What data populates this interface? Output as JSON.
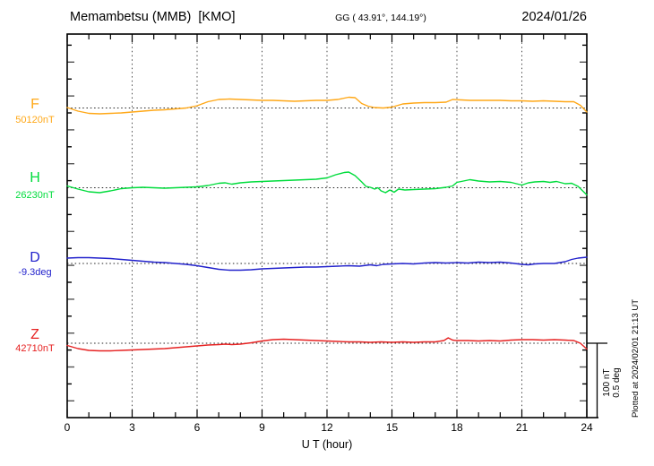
{
  "header": {
    "station": "Memambetsu (MMB)  [KMO]",
    "coords": "GG ( 43.91°, 144.19°)",
    "date": "2024/01/26"
  },
  "footer_note": "Plotted at 2024/02/01 21:13 UT",
  "x_axis": {
    "label": "U T (hour)",
    "ticks": [
      "0",
      "3",
      "6",
      "9",
      "12",
      "15",
      "18",
      "21",
      "24"
    ],
    "min": 0,
    "max": 24
  },
  "scale_bar": {
    "line1": "100 nT",
    "line2": "0.5 deg"
  },
  "channels": [
    {
      "label": "F",
      "value_label": "50120nT",
      "color": "#FFA818"
    },
    {
      "label": "H",
      "value_label": "26230nT",
      "color": "#00DC3C"
    },
    {
      "label": "D",
      "value_label": "-9.3deg",
      "color": "#2222CC"
    },
    {
      "label": "Z",
      "value_label": "42710nT",
      "color": "#E62222"
    }
  ],
  "chart_data": {
    "type": "line",
    "title": "Memambetsu (MMB) [KMO] magnetogram, 2024/01/26",
    "xlabel": "U T (hour)",
    "x_range": [
      0,
      24
    ],
    "x_ticks": [
      0,
      3,
      6,
      9,
      12,
      15,
      18,
      21,
      24
    ],
    "grid": "dotted vertical gridlines every 3 hours; dotted horizontal baseline per channel",
    "legend_position": "left",
    "scale": {
      "nT_per_division": 100,
      "deg_per_division": 0.5
    },
    "note": "points are [UT hour, deviation from base_value in unit]",
    "series": [
      {
        "name": "F",
        "unit": "nT",
        "base_value": 50120,
        "color": "#FFA818",
        "points": [
          [
            0,
            0.6
          ],
          [
            0.5,
            -4.2
          ],
          [
            1,
            -7.2
          ],
          [
            1.5,
            -7.8
          ],
          [
            2,
            -7.2
          ],
          [
            2.5,
            -6.6
          ],
          [
            3,
            -5.4
          ],
          [
            3.5,
            -4.2
          ],
          [
            4,
            -3.0
          ],
          [
            4.5,
            -2.4
          ],
          [
            5,
            -1.2
          ],
          [
            5.5,
            0
          ],
          [
            6,
            3.0
          ],
          [
            6.5,
            8.4
          ],
          [
            7,
            11.4
          ],
          [
            7.5,
            12.0
          ],
          [
            8,
            11.4
          ],
          [
            8.5,
            10.8
          ],
          [
            9,
            10.2
          ],
          [
            9.5,
            10.2
          ],
          [
            10,
            9.6
          ],
          [
            10.5,
            9.0
          ],
          [
            11,
            9.6
          ],
          [
            11.5,
            10.2
          ],
          [
            12,
            10.2
          ],
          [
            12.5,
            11.4
          ],
          [
            13,
            14.5
          ],
          [
            13.3,
            13.9
          ],
          [
            13.6,
            6.0
          ],
          [
            13.9,
            2.4
          ],
          [
            14.2,
            0.6
          ],
          [
            14.6,
            0
          ],
          [
            15,
            1.2
          ],
          [
            15.5,
            5.4
          ],
          [
            16,
            6.6
          ],
          [
            16.5,
            7.2
          ],
          [
            17,
            7.2
          ],
          [
            17.5,
            7.8
          ],
          [
            17.8,
            11.4
          ],
          [
            18.2,
            10.8
          ],
          [
            18.6,
            10.2
          ],
          [
            19,
            10.2
          ],
          [
            19.5,
            10.2
          ],
          [
            20,
            10.2
          ],
          [
            20.5,
            9.6
          ],
          [
            21,
            9.6
          ],
          [
            21.5,
            9.0
          ],
          [
            22,
            9.6
          ],
          [
            22.5,
            9.0
          ],
          [
            23,
            8.4
          ],
          [
            23.4,
            8.4
          ],
          [
            23.7,
            3.6
          ],
          [
            24,
            -5.4
          ]
        ]
      },
      {
        "name": "H",
        "unit": "nT",
        "base_value": 26230,
        "color": "#00DC3C",
        "points": [
          [
            0,
            2.4
          ],
          [
            0.5,
            -1.8
          ],
          [
            1,
            -5.4
          ],
          [
            1.5,
            -6.6
          ],
          [
            2,
            -4.2
          ],
          [
            2.5,
            -1.2
          ],
          [
            3,
            0
          ],
          [
            3.5,
            0.6
          ],
          [
            4,
            0
          ],
          [
            4.5,
            -0.6
          ],
          [
            5,
            0
          ],
          [
            5.5,
            0.6
          ],
          [
            6,
            1.2
          ],
          [
            6.5,
            3.0
          ],
          [
            7,
            6.0
          ],
          [
            7.3,
            6.6
          ],
          [
            7.6,
            4.8
          ],
          [
            8,
            6.6
          ],
          [
            8.5,
            7.8
          ],
          [
            9,
            8.4
          ],
          [
            9.5,
            9.0
          ],
          [
            10,
            9.6
          ],
          [
            10.5,
            10.2
          ],
          [
            11,
            10.8
          ],
          [
            11.5,
            11.4
          ],
          [
            12,
            13.3
          ],
          [
            12.4,
            17.5
          ],
          [
            12.8,
            20.5
          ],
          [
            13,
            21.1
          ],
          [
            13.3,
            16.3
          ],
          [
            13.6,
            7.8
          ],
          [
            13.8,
            1.8
          ],
          [
            14,
            0.6
          ],
          [
            14.2,
            -1.8
          ],
          [
            14.35,
            0
          ],
          [
            14.5,
            -4.2
          ],
          [
            14.7,
            -6.6
          ],
          [
            14.9,
            -3.0
          ],
          [
            15.1,
            -6.0
          ],
          [
            15.3,
            -1.8
          ],
          [
            15.6,
            -3.0
          ],
          [
            16,
            -2.4
          ],
          [
            16.5,
            -1.8
          ],
          [
            17,
            -1.2
          ],
          [
            17.5,
            0.6
          ],
          [
            17.8,
            2.4
          ],
          [
            18,
            7.2
          ],
          [
            18.3,
            9.0
          ],
          [
            18.6,
            10.8
          ],
          [
            19,
            9.0
          ],
          [
            19.5,
            7.8
          ],
          [
            20,
            8.4
          ],
          [
            20.5,
            7.2
          ],
          [
            21,
            3.6
          ],
          [
            21.3,
            6.6
          ],
          [
            21.6,
            7.8
          ],
          [
            22,
            8.4
          ],
          [
            22.3,
            7.2
          ],
          [
            22.6,
            8.4
          ],
          [
            23,
            5.4
          ],
          [
            23.3,
            6.0
          ],
          [
            23.6,
            1.8
          ],
          [
            24,
            -9.6
          ]
        ]
      },
      {
        "name": "D",
        "unit": "deg",
        "base_value": -9.3,
        "color": "#2222CC",
        "points": [
          [
            0,
            0.036
          ],
          [
            0.5,
            0.039
          ],
          [
            1,
            0.039
          ],
          [
            1.5,
            0.036
          ],
          [
            2,
            0.033
          ],
          [
            2.5,
            0.027
          ],
          [
            3,
            0.021
          ],
          [
            3.5,
            0.015
          ],
          [
            4,
            0.009
          ],
          [
            4.5,
            0.006
          ],
          [
            5,
            0
          ],
          [
            5.5,
            -0.006
          ],
          [
            6,
            -0.015
          ],
          [
            6.5,
            -0.027
          ],
          [
            7,
            -0.039
          ],
          [
            7.5,
            -0.045
          ],
          [
            8,
            -0.045
          ],
          [
            8.5,
            -0.042
          ],
          [
            9,
            -0.036
          ],
          [
            9.5,
            -0.033
          ],
          [
            10,
            -0.03
          ],
          [
            10.5,
            -0.027
          ],
          [
            11,
            -0.024
          ],
          [
            11.5,
            -0.024
          ],
          [
            12,
            -0.021
          ],
          [
            12.5,
            -0.018
          ],
          [
            13,
            -0.015
          ],
          [
            13.5,
            -0.018
          ],
          [
            14,
            -0.009
          ],
          [
            14.3,
            -0.015
          ],
          [
            14.6,
            -0.006
          ],
          [
            15,
            -0.003
          ],
          [
            15.5,
            0
          ],
          [
            16,
            -0.003
          ],
          [
            16.5,
            0.003
          ],
          [
            17,
            0.006
          ],
          [
            17.5,
            0.003
          ],
          [
            18,
            0.006
          ],
          [
            18.5,
            0.003
          ],
          [
            19,
            0.009
          ],
          [
            19.5,
            0.006
          ],
          [
            20,
            0.009
          ],
          [
            20.5,
            0.003
          ],
          [
            21,
            -0.006
          ],
          [
            21.3,
            -0.009
          ],
          [
            21.6,
            -0.003
          ],
          [
            22,
            0
          ],
          [
            22.5,
            0
          ],
          [
            23,
            0.012
          ],
          [
            23.3,
            0.027
          ],
          [
            23.6,
            0.036
          ],
          [
            24,
            0.042
          ]
        ]
      },
      {
        "name": "Z",
        "unit": "nT",
        "base_value": 42710,
        "color": "#E62222",
        "points": [
          [
            0,
            -3.0
          ],
          [
            0.5,
            -7.2
          ],
          [
            1,
            -9.6
          ],
          [
            1.5,
            -10.2
          ],
          [
            2,
            -10.2
          ],
          [
            2.5,
            -9.6
          ],
          [
            3,
            -9.0
          ],
          [
            3.5,
            -8.4
          ],
          [
            4,
            -7.8
          ],
          [
            4.5,
            -7.2
          ],
          [
            5,
            -6.0
          ],
          [
            5.5,
            -4.8
          ],
          [
            6,
            -3.6
          ],
          [
            6.5,
            -2.4
          ],
          [
            7,
            -1.8
          ],
          [
            7.3,
            -1.2
          ],
          [
            7.6,
            -1.8
          ],
          [
            8,
            -1.2
          ],
          [
            8.5,
            0.6
          ],
          [
            9,
            3.0
          ],
          [
            9.5,
            4.8
          ],
          [
            10,
            5.4
          ],
          [
            10.5,
            4.8
          ],
          [
            11,
            4.2
          ],
          [
            11.5,
            3.6
          ],
          [
            12,
            3.0
          ],
          [
            12.5,
            2.4
          ],
          [
            13,
            1.8
          ],
          [
            13.5,
            1.8
          ],
          [
            14,
            1.2
          ],
          [
            14.5,
            1.8
          ],
          [
            15,
            1.2
          ],
          [
            15.5,
            1.8
          ],
          [
            16,
            1.2
          ],
          [
            16.5,
            1.8
          ],
          [
            17,
            1.8
          ],
          [
            17.4,
            3.6
          ],
          [
            17.6,
            7.2
          ],
          [
            17.8,
            4.2
          ],
          [
            18,
            3.6
          ],
          [
            18.5,
            3.6
          ],
          [
            19,
            3.0
          ],
          [
            19.5,
            3.6
          ],
          [
            20,
            3.0
          ],
          [
            20.5,
            4.2
          ],
          [
            21,
            4.8
          ],
          [
            21.5,
            4.8
          ],
          [
            22,
            4.2
          ],
          [
            22.5,
            4.8
          ],
          [
            23,
            4.2
          ],
          [
            23.4,
            3.6
          ],
          [
            23.7,
            0
          ],
          [
            24,
            -7.8
          ]
        ]
      }
    ]
  }
}
